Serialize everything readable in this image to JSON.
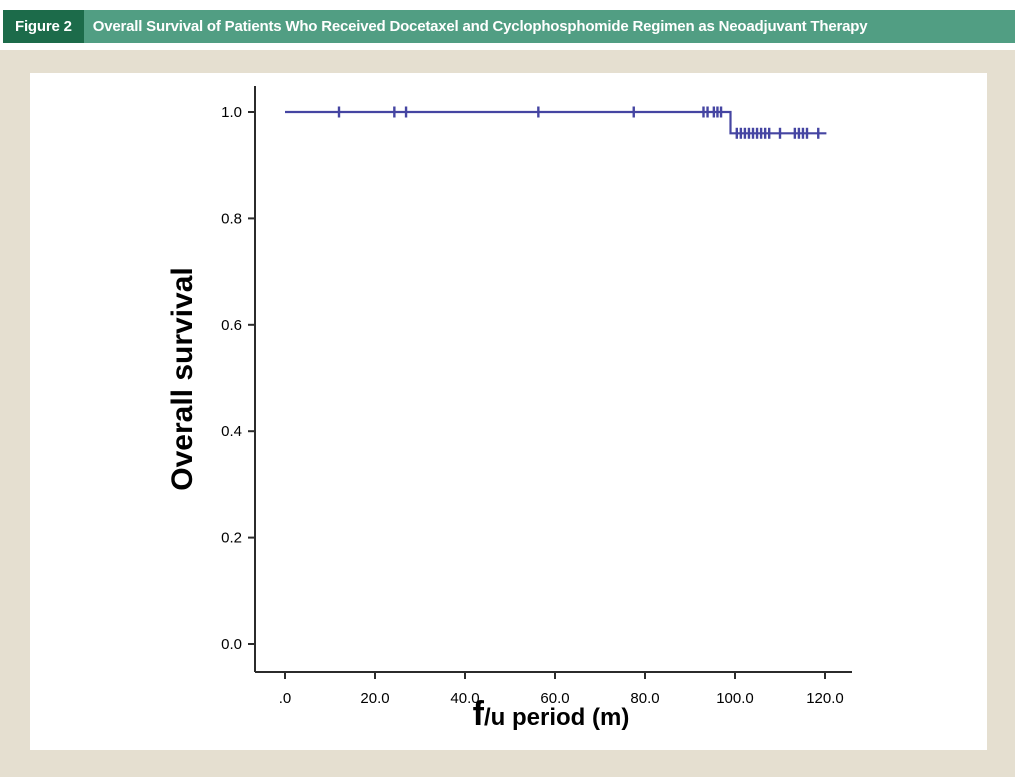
{
  "header": {
    "figure_label": "Figure 2",
    "title": "Overall Survival of Patients Who Received Docetaxel and Cyclophosphomide Regimen as Neoadjuvant Therapy"
  },
  "colors": {
    "figure_label_bg": "#1c6b4a",
    "title_bar_bg": "#519e83",
    "frame_bg": "#e5dfd0",
    "panel_bg": "#ffffff",
    "curve": "#4545a2",
    "axis": "#2b2b2b"
  },
  "chart_data": {
    "type": "line",
    "subtype": "kaplan-meier-step",
    "title": "",
    "xlabel": "f/u period (m)",
    "xlabel_parts": [
      {
        "text": "f",
        "size": "large"
      },
      {
        "text": "/u period (m)",
        "size": "normal"
      }
    ],
    "ylabel": "Overall survival",
    "xlim": [
      0,
      126
    ],
    "ylim": [
      0,
      1.05
    ],
    "grid": false,
    "legend": "none",
    "x_ticks": [
      0,
      20,
      40,
      60,
      80,
      100,
      120
    ],
    "x_tick_labels": [
      ".0",
      "20.0",
      "40.0",
      "60.0",
      "80.0",
      "100.0",
      "120.0"
    ],
    "y_ticks": [
      0.0,
      0.2,
      0.4,
      0.6,
      0.8,
      1.0
    ],
    "y_tick_labels": [
      "0.0",
      "0.2",
      "0.4",
      "0.6",
      "0.8",
      "1.0"
    ],
    "step_points": [
      {
        "x": 0,
        "y": 1.0
      },
      {
        "x": 99,
        "y": 1.0
      },
      {
        "x": 99,
        "y": 0.96
      },
      {
        "x": 120.3,
        "y": 0.96
      }
    ],
    "censored": [
      {
        "x": 12,
        "y": 1.0
      },
      {
        "x": 24.3,
        "y": 1.0
      },
      {
        "x": 26.9,
        "y": 1.0
      },
      {
        "x": 56.3,
        "y": 1.0
      },
      {
        "x": 77.5,
        "y": 1.0
      },
      {
        "x": 93.0,
        "y": 1.0
      },
      {
        "x": 93.9,
        "y": 1.0
      },
      {
        "x": 95.3,
        "y": 1.0
      },
      {
        "x": 96.1,
        "y": 1.0
      },
      {
        "x": 96.9,
        "y": 1.0
      },
      {
        "x": 100.4,
        "y": 0.96
      },
      {
        "x": 101.3,
        "y": 0.96
      },
      {
        "x": 102.2,
        "y": 0.96
      },
      {
        "x": 103.1,
        "y": 0.96
      },
      {
        "x": 104.0,
        "y": 0.96
      },
      {
        "x": 104.9,
        "y": 0.96
      },
      {
        "x": 105.8,
        "y": 0.96
      },
      {
        "x": 106.7,
        "y": 0.96
      },
      {
        "x": 107.6,
        "y": 0.96
      },
      {
        "x": 110.0,
        "y": 0.96
      },
      {
        "x": 113.3,
        "y": 0.96
      },
      {
        "x": 114.2,
        "y": 0.96
      },
      {
        "x": 115.1,
        "y": 0.96
      },
      {
        "x": 116.0,
        "y": 0.96
      },
      {
        "x": 118.5,
        "y": 0.96
      }
    ]
  }
}
